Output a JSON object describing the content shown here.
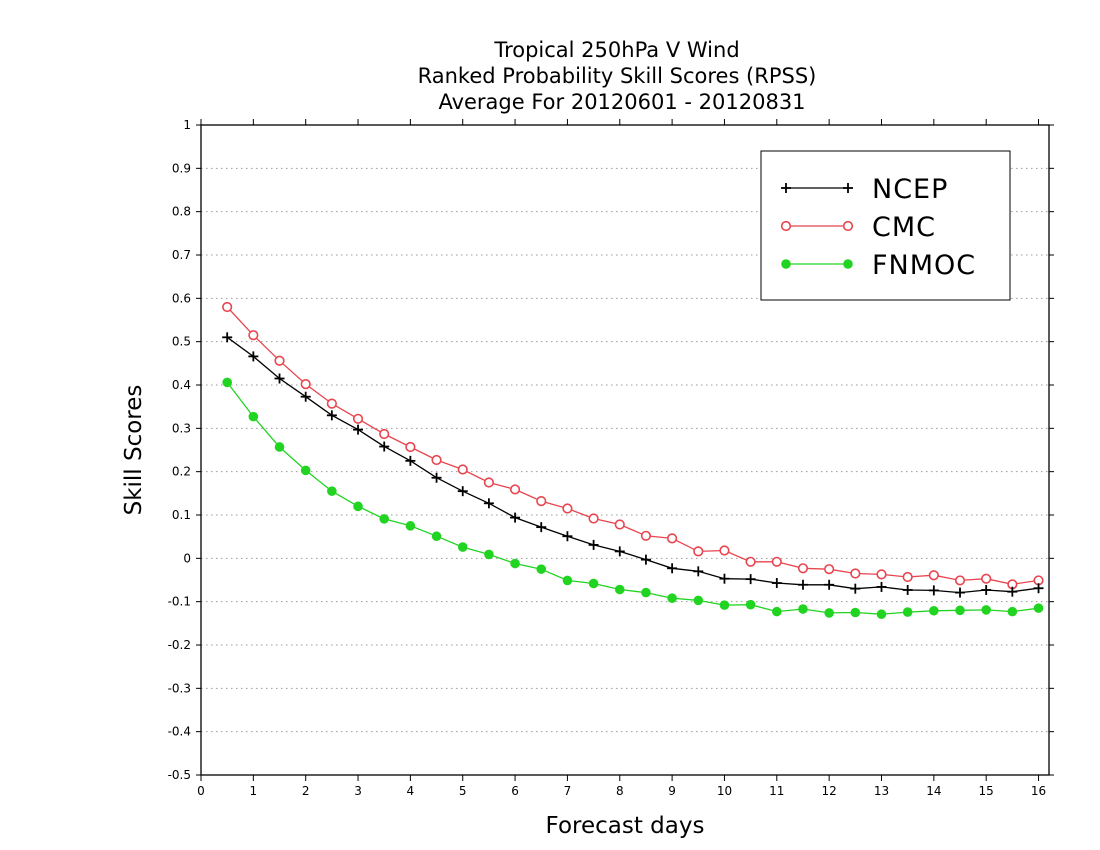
{
  "chart_data": {
    "type": "line",
    "title_lines": [
      "Tropical 250hPa V Wind",
      "Ranked Probability Skill Scores (RPSS)",
      "Average For 20120601 - 20120831"
    ],
    "xlabel": "Forecast days",
    "ylabel": "Skill Scores",
    "xlim": [
      0,
      16.2
    ],
    "ylim": [
      -0.5,
      1
    ],
    "x_ticks": [
      "0",
      "1",
      "2",
      "3",
      "4",
      "5",
      "6",
      "7",
      "8",
      "9",
      "10",
      "11",
      "12",
      "13",
      "14",
      "15",
      "16"
    ],
    "y_ticks": [
      "1",
      "0.9",
      "0.8",
      "0.7",
      "0.6",
      "0.5",
      "0.4",
      "0.3",
      "0.2",
      "0.1",
      "0",
      "-0.1",
      "-0.2",
      "-0.3",
      "-0.4",
      "-0.5"
    ],
    "grid": "dotted horizontal",
    "legend_position": "top-right",
    "x": [
      0.5,
      1,
      1.5,
      2,
      2.5,
      3,
      3.5,
      4,
      4.5,
      5,
      5.5,
      6,
      6.5,
      7,
      7.5,
      8,
      8.5,
      9,
      9.5,
      10,
      10.5,
      11,
      11.5,
      12,
      12.5,
      13,
      13.5,
      14,
      14.5,
      15,
      15.5,
      16
    ],
    "series": [
      {
        "name": "NCEP",
        "color": "#000000",
        "marker": "plus",
        "values": [
          0.51,
          0.466,
          0.415,
          0.373,
          0.33,
          0.297,
          0.258,
          0.225,
          0.186,
          0.155,
          0.127,
          0.094,
          0.072,
          0.051,
          0.031,
          0.016,
          -0.003,
          -0.023,
          -0.03,
          -0.047,
          -0.048,
          -0.057,
          -0.061,
          -0.061,
          -0.07,
          -0.066,
          -0.073,
          -0.074,
          -0.079,
          -0.073,
          -0.077,
          -0.069
        ]
      },
      {
        "name": "CMC",
        "color": "#e8454f",
        "marker": "open-circle",
        "values": [
          0.58,
          0.515,
          0.456,
          0.402,
          0.357,
          0.322,
          0.287,
          0.257,
          0.227,
          0.205,
          0.175,
          0.159,
          0.132,
          0.115,
          0.092,
          0.078,
          0.052,
          0.046,
          0.016,
          0.018,
          -0.008,
          -0.008,
          -0.023,
          -0.025,
          -0.035,
          -0.037,
          -0.043,
          -0.039,
          -0.051,
          -0.047,
          -0.06,
          -0.051
        ]
      },
      {
        "name": "FNMOC",
        "color": "#22d422",
        "marker": "filled-circle",
        "values": [
          0.406,
          0.327,
          0.257,
          0.203,
          0.155,
          0.12,
          0.091,
          0.075,
          0.051,
          0.026,
          0.009,
          -0.012,
          -0.025,
          -0.051,
          -0.058,
          -0.072,
          -0.079,
          -0.092,
          -0.097,
          -0.108,
          -0.107,
          -0.123,
          -0.117,
          -0.126,
          -0.125,
          -0.129,
          -0.124,
          -0.121,
          -0.12,
          -0.119,
          -0.123,
          -0.115
        ]
      }
    ]
  }
}
